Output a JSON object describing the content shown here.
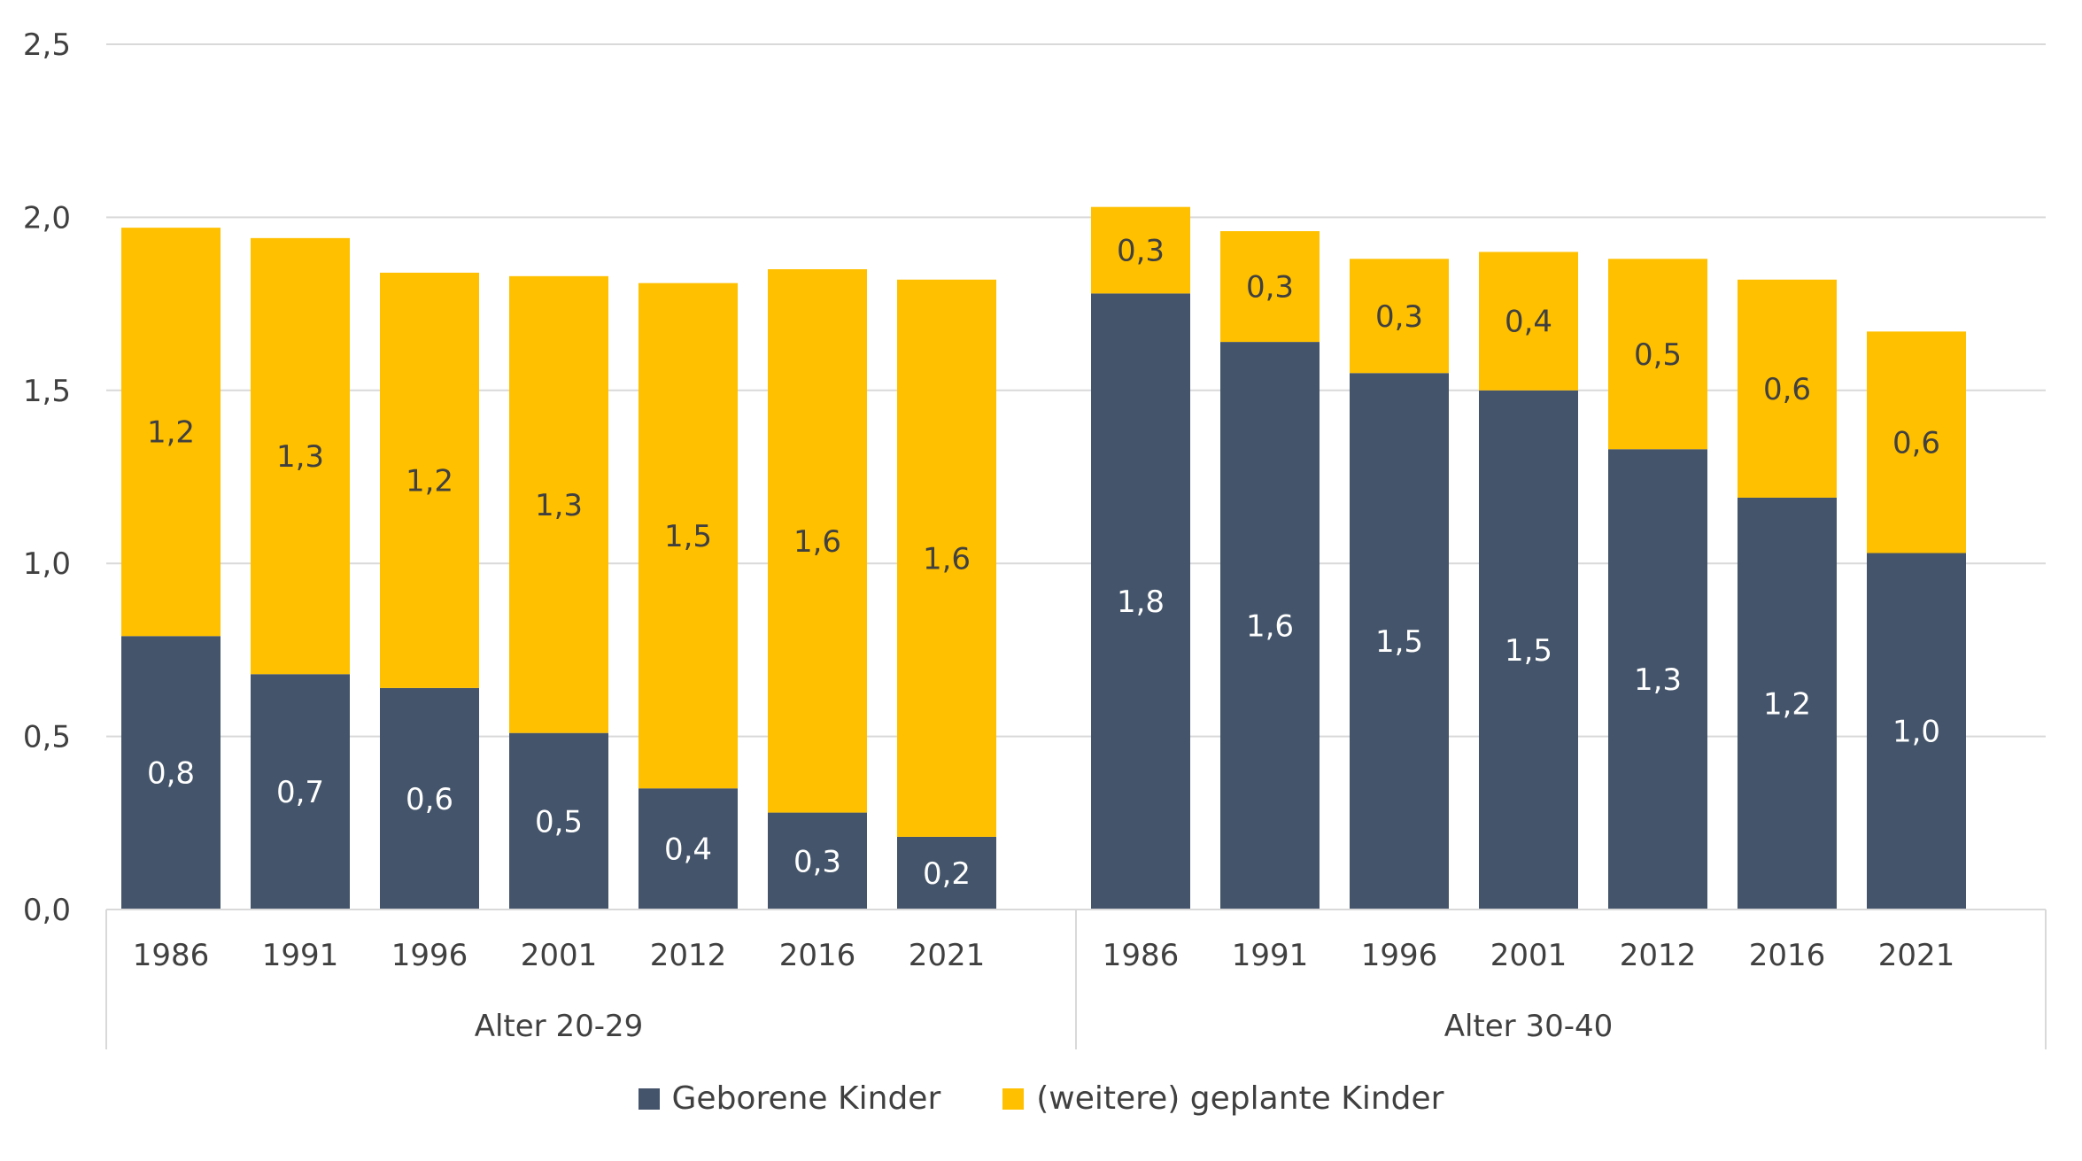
{
  "chart_data": {
    "type": "bar",
    "stacked": true,
    "groups": [
      {
        "label": "Alter 20-29",
        "categories": [
          "1986",
          "1991",
          "1996",
          "2001",
          "2012",
          "2016",
          "2021"
        ],
        "series": [
          {
            "name": "Geborene Kinder",
            "values": [
              0.79,
              0.68,
              0.64,
              0.51,
              0.35,
              0.28,
              0.21
            ],
            "labels": [
              "0,8",
              "0,7",
              "0,6",
              "0,5",
              "0,4",
              "0,3",
              "0,2"
            ]
          },
          {
            "name": "(weitere) geplante Kinder",
            "values": [
              1.18,
              1.26,
              1.2,
              1.32,
              1.46,
              1.57,
              1.61
            ],
            "labels": [
              "1,2",
              "1,3",
              "1,2",
              "1,3",
              "1,5",
              "1,6",
              "1,6"
            ]
          }
        ]
      },
      {
        "label": "Alter 30-40",
        "categories": [
          "1986",
          "1991",
          "1996",
          "2001",
          "2012",
          "2016",
          "2021"
        ],
        "series": [
          {
            "name": "Geborene Kinder",
            "values": [
              1.78,
              1.64,
              1.55,
              1.5,
              1.33,
              1.19,
              1.03
            ],
            "labels": [
              "1,8",
              "1,6",
              "1,5",
              "1,5",
              "1,3",
              "1,2",
              "1,0"
            ]
          },
          {
            "name": "(weitere) geplante Kinder",
            "values": [
              0.25,
              0.32,
              0.33,
              0.4,
              0.55,
              0.63,
              0.64
            ],
            "labels": [
              "0,3",
              "0,3",
              "0,3",
              "0,4",
              "0,5",
              "0,6",
              "0,6"
            ]
          }
        ]
      }
    ],
    "ylim": [
      0,
      2.5
    ],
    "yticks": [
      0,
      0.5,
      1.0,
      1.5,
      2.0,
      2.5
    ],
    "ytick_labels": [
      "0,0",
      "0,5",
      "1,0",
      "1,5",
      "2,0",
      "2,5"
    ],
    "grid": true,
    "legend_position": "bottom",
    "colors": {
      "Geborene Kinder": "#44546A",
      "(weitere) geplante Kinder": "#FFC000"
    },
    "label_colors": {
      "Geborene Kinder": "#FFFFFF",
      "(weitere) geplante Kinder": "#404040"
    }
  },
  "legend": {
    "items": [
      {
        "label": "Geborene Kinder",
        "color": "#44546A"
      },
      {
        "label": "(weitere) geplante Kinder",
        "color": "#FFC000"
      }
    ]
  }
}
